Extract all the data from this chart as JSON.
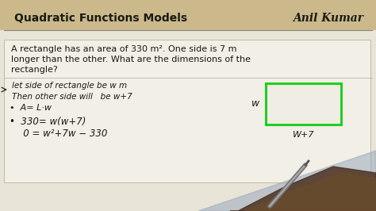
{
  "bg_top": "#c8b88a",
  "bg_main": "#e8e2d0",
  "header_color": "#c8b88a",
  "title_left": "Quadratic Functions Models",
  "title_right": "Anil Kumar",
  "title_color": "#1a1a1a",
  "line_color": "#888880",
  "problem_line1": "A rectangle has an area of 330 m². One side is 7 m",
  "problem_line2": "longer than the other. What are the dimensions of the",
  "problem_line3": "rectangle?",
  "hw_line1": "let side of rectangle be w m",
  "hw_line2": "Then other side will   be w+7",
  "hw_line3": "•  A= L·w",
  "hw_line4": "•  330= w(w+7)",
  "hw_line5": "   0 = w²+7w − 330",
  "text_color": "#1a1810",
  "rect_color": "#22cc22",
  "rect_fill": "#f0ede5",
  "rect_label_w": "w",
  "rect_label_w7": "W+7",
  "hand_color1": "#5a3a1a",
  "hand_color2": "#7a5a2a",
  "shadow_color": "#b0b8c8",
  "pen_color": "#888888"
}
